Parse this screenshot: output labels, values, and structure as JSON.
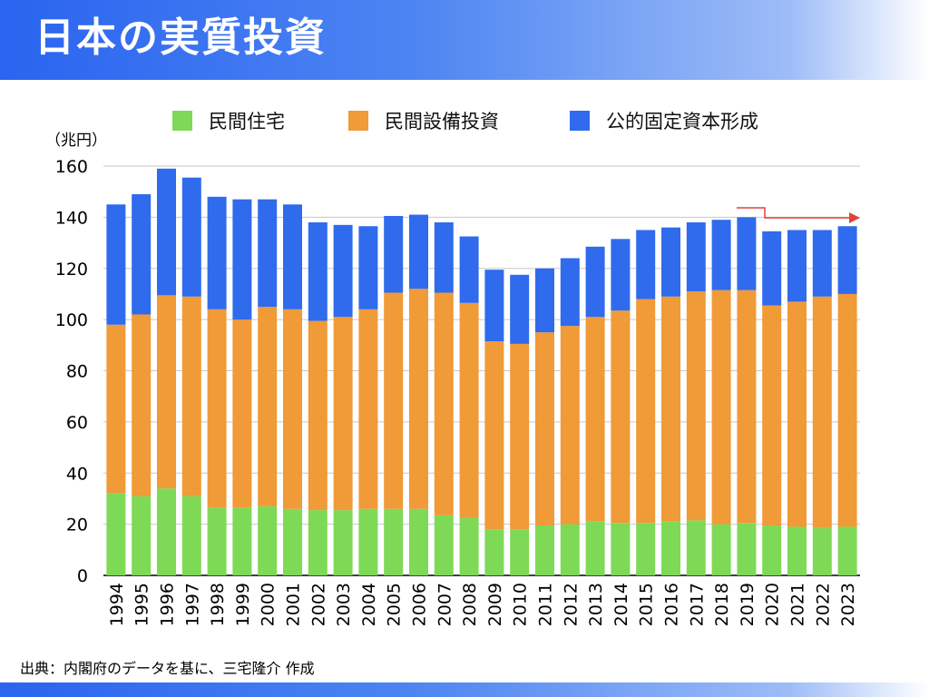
{
  "title": "日本の実質投資",
  "source": "出典：内閣府のデータを基に、三宅隆介 作成",
  "chart_data": {
    "type": "bar",
    "stacked": true,
    "unit_label": "（兆円）",
    "categories": [
      "1994",
      "1995",
      "1996",
      "1997",
      "1998",
      "1999",
      "2000",
      "2001",
      "2002",
      "2003",
      "2004",
      "2005",
      "2006",
      "2007",
      "2008",
      "2009",
      "2010",
      "2011",
      "2012",
      "2013",
      "2014",
      "2015",
      "2016",
      "2017",
      "2018",
      "2019",
      "2020",
      "2021",
      "2022",
      "2023"
    ],
    "series": [
      {
        "name": "民間住宅",
        "color": "#7ed957",
        "values": [
          32,
          31,
          34,
          31,
          26.5,
          26.5,
          27,
          26,
          25.5,
          25.5,
          26,
          26,
          26,
          23.5,
          22.5,
          18,
          18,
          19.5,
          20,
          21,
          20.5,
          20.5,
          21,
          21.5,
          20,
          20.5,
          19.5,
          19,
          18.5,
          19
        ]
      },
      {
        "name": "民間設備投資",
        "color": "#f09a38",
        "values": [
          66,
          71,
          75.5,
          78,
          77.5,
          73.5,
          78,
          78,
          74,
          75.5,
          78,
          84.5,
          86,
          87,
          84,
          73.5,
          72.5,
          75.5,
          77.5,
          80,
          83,
          87.5,
          88,
          89.5,
          91.5,
          91,
          86,
          88,
          90.5,
          91
        ]
      },
      {
        "name": "公的固定資本形成",
        "color": "#2f6bec",
        "values": [
          47,
          47,
          49.5,
          46.5,
          44,
          47,
          42,
          41,
          38.5,
          36,
          32.5,
          30,
          29,
          27.5,
          26,
          28,
          27,
          25,
          26.5,
          27.5,
          28,
          27,
          27,
          27,
          27.5,
          28.5,
          29,
          28,
          26,
          26.5
        ]
      }
    ],
    "ylim": [
      0,
      160
    ],
    "yticks": [
      0,
      20,
      40,
      60,
      80,
      100,
      120,
      140,
      160
    ],
    "grid": true,
    "legend_position": "top"
  }
}
